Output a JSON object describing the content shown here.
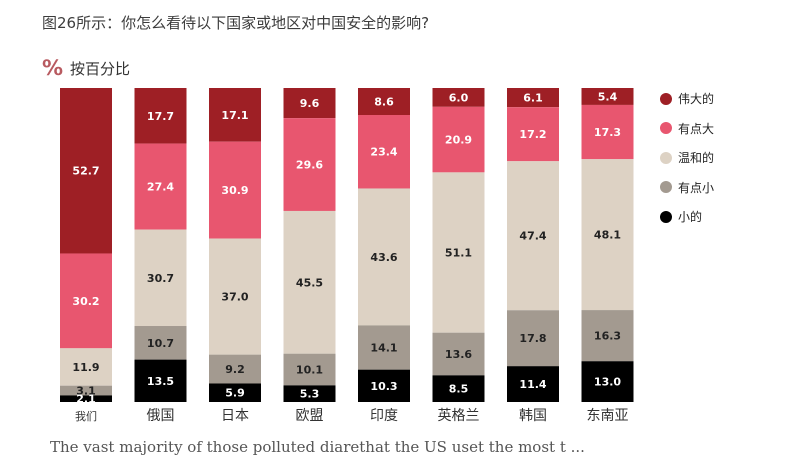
{
  "title": "图26所示：你怎么看待以下国家或地区对中国安全的影响?",
  "unit_icon": "%",
  "unit_label": "按百分比",
  "footer_text": "The vast majority of those polluted diarethat the US uset the most t ...",
  "colors": {
    "伟大的": "#9e1f25",
    "有点大": "#e8566f",
    "温和的": "#ddd2c4",
    "有点小": "#a39a90",
    "小的": "#000000"
  },
  "chart_data": {
    "type": "bar",
    "stacked": true,
    "categories": [
      "我们",
      "俄国",
      "日本",
      "欧盟",
      "印度",
      "英格兰",
      "韩国",
      "东南亚"
    ],
    "series": [
      {
        "name": "伟大的",
        "values": [
          52.7,
          17.7,
          17.1,
          9.6,
          8.6,
          6.0,
          6.1,
          5.4
        ]
      },
      {
        "name": "有点大",
        "values": [
          30.2,
          27.4,
          30.9,
          29.6,
          23.4,
          20.9,
          17.2,
          17.3
        ]
      },
      {
        "name": "温和的",
        "values": [
          11.9,
          30.7,
          37.0,
          45.5,
          43.6,
          51.1,
          47.4,
          48.1
        ]
      },
      {
        "name": "有点小",
        "values": [
          3.1,
          10.7,
          9.2,
          10.1,
          14.1,
          13.6,
          17.8,
          16.3
        ]
      },
      {
        "name": "小的",
        "values": [
          2.1,
          13.5,
          5.9,
          5.3,
          10.3,
          8.5,
          11.4,
          13.0
        ]
      }
    ],
    "value_labels": [
      [
        "52.7",
        "30.2",
        "11.9",
        "3.1",
        "2.1"
      ],
      [
        "17.7",
        "27.4",
        "30.7",
        "10.7",
        "13.5"
      ],
      [
        "17.1",
        "30.9",
        "37.0",
        "9.2",
        "5.9"
      ],
      [
        "9.6",
        "29.6",
        "45.5",
        "10.1",
        "5.3"
      ],
      [
        "8.6",
        "23.4",
        "43.6",
        "14.1",
        "10.3"
      ],
      [
        "6.0",
        "20.9",
        "51.1",
        "13.6",
        "8.5"
      ],
      [
        "6.1",
        "17.2",
        "47.4",
        "17.8",
        "11.4"
      ],
      [
        "5.4",
        "17.3",
        "48.1",
        "16.3",
        "13.0"
      ]
    ],
    "legend_position": "right",
    "grid": false,
    "ylim": [
      0,
      100
    ]
  }
}
